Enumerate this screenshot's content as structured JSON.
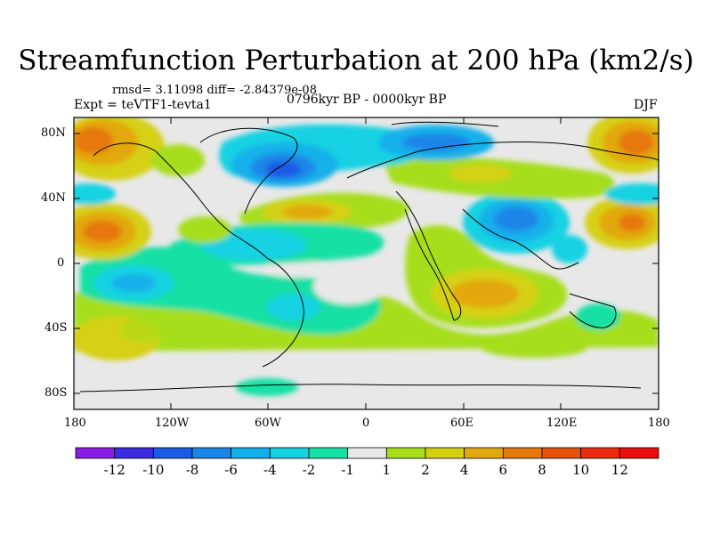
{
  "title": "Streamfunction Perturbation at 200 hPa (km2/s)",
  "stats": "rmsd= 3.11098 diff= -2.84379e-08",
  "experiment": "Expt = teVTF1-tevta1",
  "period": "0796kyr BP - 0000kyr BP",
  "season": "DJF",
  "lat_labels": [
    "80N",
    "40N",
    "0",
    "40S",
    "80S"
  ],
  "lon_labels": [
    "180",
    "120W",
    "60W",
    "0",
    "60E",
    "120E",
    "180"
  ],
  "colorbar": {
    "labels": [
      "-12",
      "-10",
      "-8",
      "-6",
      "-4",
      "-2",
      "-1",
      "1",
      "2",
      "4",
      "6",
      "8",
      "10",
      "12"
    ],
    "colors": [
      "#8a1ce6",
      "#3a2ae0",
      "#1a5ae6",
      "#1a86e8",
      "#12b0ea",
      "#14d2e2",
      "#14e0a4",
      "#e8e8e8",
      "#a6de1a",
      "#d6d012",
      "#e2a80e",
      "#e6780c",
      "#e8520c",
      "#ec2a0e",
      "#ec0e0e"
    ]
  }
}
